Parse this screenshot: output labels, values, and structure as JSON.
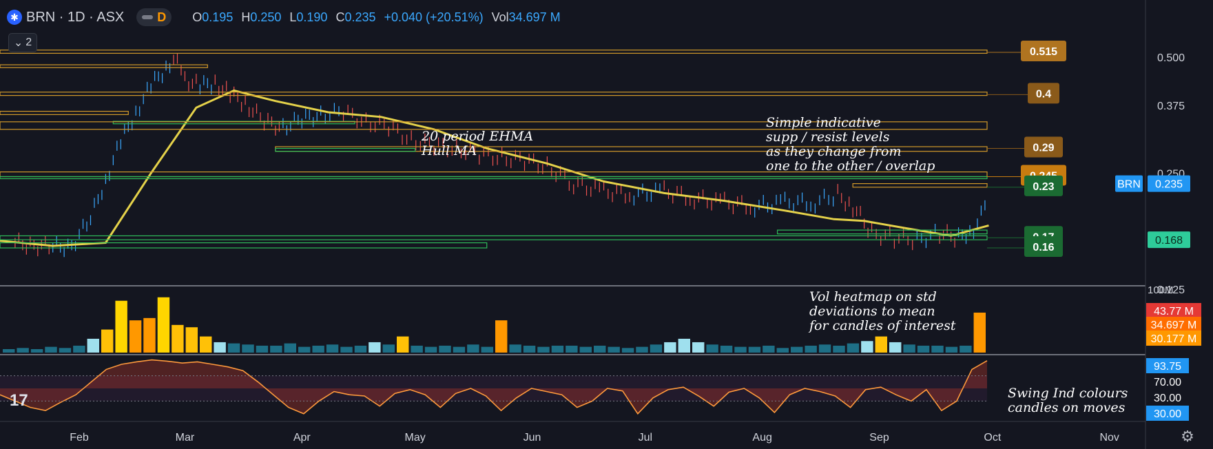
{
  "header": {
    "symbol": "BRN · 1D · ASX",
    "interval_badge": "D",
    "o_label": "O",
    "o_value": "0.195",
    "h_label": "H",
    "h_value": "0.250",
    "l_label": "L",
    "l_value": "0.190",
    "c_label": "C",
    "c_value": "0.235",
    "change": "+0.040 (+20.51%)",
    "vol_label": "Vol",
    "vol_value": "34.697 M"
  },
  "collapse_count": "2",
  "annotations": {
    "ma_lines": [
      "20 period EHMA",
      "Hull MA"
    ],
    "levels_lines": [
      "Simple indicative",
      "supp / resist levels",
      "as they change from",
      "one to the other / overlap"
    ],
    "vol_lines": [
      "Vol heatmap on std",
      "deviations to mean",
      "for candles of interest"
    ],
    "swing_lines": [
      "Swing Ind colours",
      "candles on moves"
    ]
  },
  "chart_data": [
    {
      "type": "line",
      "panel": "price",
      "ticker": "BRN",
      "price_scale": {
        "ticks": [
          "0.500",
          "0.375",
          "0.250",
          "0.125"
        ],
        "range": [
          0.125,
          0.55
        ],
        "log": true
      },
      "time_axis": {
        "months": [
          "Feb",
          "Mar",
          "Apr",
          "May",
          "Jun",
          "Jul",
          "Aug",
          "Sep",
          "Oct",
          "Nov"
        ],
        "range": [
          "2022-01-11",
          "2022-11-10"
        ]
      },
      "series": [
        {
          "name": "",
          "style": "bars-colored",
          "x": [
            "2022-01-15",
            "2022-01-20",
            "2022-01-25",
            "2022-01-30",
            "2022-02-04",
            "2022-02-08",
            "2022-02-12",
            "2022-02-16",
            "2022-02-20",
            "2022-02-24",
            "2022-02-26",
            "2022-03-01",
            "2022-03-05",
            "2022-03-09",
            "2022-03-13",
            "2022-03-17",
            "2022-03-22",
            "2022-03-27",
            "2022-04-01",
            "2022-04-06",
            "2022-04-12",
            "2022-04-18",
            "2022-04-24",
            "2022-04-30",
            "2022-05-06",
            "2022-05-12",
            "2022-05-18",
            "2022-05-24",
            "2022-05-30",
            "2022-06-05",
            "2022-06-12",
            "2022-06-20",
            "2022-06-28",
            "2022-07-06",
            "2022-07-14",
            "2022-07-22",
            "2022-07-30",
            "2022-08-07",
            "2022-08-15",
            "2022-08-21",
            "2022-08-25",
            "2022-08-30",
            "2022-09-05",
            "2022-09-11",
            "2022-09-17",
            "2022-09-22",
            "2022-09-26",
            "2022-09-29",
            "2022-09-30"
          ],
          "values": [
            0.165,
            0.163,
            0.161,
            0.162,
            0.19,
            0.24,
            0.3,
            0.36,
            0.42,
            0.47,
            0.5,
            0.44,
            0.42,
            0.43,
            0.4,
            0.38,
            0.34,
            0.33,
            0.345,
            0.355,
            0.36,
            0.34,
            0.33,
            0.305,
            0.295,
            0.29,
            0.28,
            0.275,
            0.27,
            0.26,
            0.235,
            0.225,
            0.22,
            0.225,
            0.215,
            0.21,
            0.205,
            0.21,
            0.21,
            0.22,
            0.205,
            0.175,
            0.17,
            0.168,
            0.175,
            0.17,
            0.18,
            0.2,
            0.235
          ]
        },
        {
          "name": "",
          "style": "line",
          "color": "#e5d24a",
          "x": [
            "2022-01-11",
            "2022-01-25",
            "2022-02-08",
            "2022-02-20",
            "2022-03-04",
            "2022-03-14",
            "2022-03-25",
            "2022-04-08",
            "2022-04-22",
            "2022-05-06",
            "2022-05-20",
            "2022-06-05",
            "2022-06-20",
            "2022-07-06",
            "2022-07-22",
            "2022-08-07",
            "2022-08-20",
            "2022-08-28",
            "2022-09-08",
            "2022-09-20",
            "2022-09-30"
          ],
          "values": [
            0.167,
            0.162,
            0.165,
            0.25,
            0.37,
            0.41,
            0.385,
            0.36,
            0.35,
            0.325,
            0.29,
            0.265,
            0.238,
            0.222,
            0.212,
            0.2,
            0.19,
            0.188,
            0.18,
            0.172,
            0.183
          ]
        }
      ],
      "levels": [
        {
          "low": 0.512,
          "high": 0.522,
          "type": "resistance",
          "start": "2022-01-11"
        },
        {
          "low": 0.47,
          "high": 0.478,
          "type": "resistance",
          "start": "2022-01-11",
          "end": "2022-03-07"
        },
        {
          "low": 0.398,
          "high": 0.406,
          "type": "resistance",
          "start": "2022-01-11"
        },
        {
          "low": 0.355,
          "high": 0.362,
          "type": "resistance",
          "start": "2022-01-11",
          "end": "2022-02-14"
        },
        {
          "low": 0.336,
          "high": 0.341,
          "type": "support",
          "start": "2022-02-10",
          "end": "2022-04-15"
        },
        {
          "low": 0.325,
          "high": 0.34,
          "type": "resistance",
          "start": "2022-01-11"
        },
        {
          "low": 0.285,
          "high": 0.293,
          "type": "resistance",
          "start": "2022-03-25"
        },
        {
          "low": 0.285,
          "high": 0.29,
          "type": "support",
          "start": "2022-03-25",
          "end": "2022-05-01"
        },
        {
          "low": 0.245,
          "high": 0.252,
          "type": "resistance",
          "start": "2022-01-11"
        },
        {
          "low": 0.242,
          "high": 0.245,
          "type": "support",
          "start": "2022-01-11"
        },
        {
          "low": 0.23,
          "high": 0.235,
          "type": "resistance",
          "start": "2022-08-25"
        },
        {
          "low": 0.174,
          "high": 0.178,
          "type": "support",
          "start": "2022-08-05"
        },
        {
          "low": 0.168,
          "high": 0.172,
          "type": "support",
          "start": "2022-01-11"
        },
        {
          "low": 0.16,
          "high": 0.165,
          "type": "support",
          "start": "2022-01-11",
          "end": "2022-05-20"
        }
      ],
      "level_labels": [
        {
          "text": "0.515",
          "value": 0.515,
          "color": "#b07420"
        },
        {
          "text": "0.4",
          "value": 0.4,
          "color": "#8a5a1a"
        },
        {
          "text": "0.29",
          "value": 0.29,
          "color": "#8a5a1a"
        },
        {
          "text": "0.245",
          "value": 0.245,
          "color": "#c87c10"
        },
        {
          "text": "0.23",
          "value": 0.23,
          "color": "#1b6b32"
        },
        {
          "text": "0.17",
          "value": 0.17,
          "color": "#1b6b32"
        },
        {
          "text": "0.16",
          "value": 0.16,
          "color": "#1b6b32"
        }
      ],
      "scale_labels": [
        {
          "text": "BRN",
          "value": 0.235,
          "color": "#2196f3"
        },
        {
          "text": "0.235",
          "value": 0.235,
          "color": "#2196f3"
        },
        {
          "text": "0.168",
          "value": 0.168,
          "color": "#2ecc9a"
        }
      ],
      "grid": false
    },
    {
      "type": "bar",
      "panel": "volume",
      "scale_top_label": "100M",
      "scale_labels": [
        {
          "text": "43.77 M",
          "color": "#e53935"
        },
        {
          "text": "34.697 M",
          "color": "#ff6d00"
        },
        {
          "text": "30.177 M",
          "color": "#ff9800"
        }
      ],
      "values_m": [
        3,
        4,
        3,
        5,
        4,
        6,
        12,
        20,
        45,
        28,
        30,
        48,
        24,
        22,
        14,
        9,
        8,
        7,
        6,
        6,
        8,
        5,
        6,
        7,
        5,
        6,
        9,
        7,
        14,
        6,
        5,
        6,
        5,
        7,
        5,
        28,
        7,
        6,
        5,
        6,
        6,
        5,
        6,
        5,
        4,
        5,
        7,
        9,
        12,
        9,
        7,
        6,
        5,
        5,
        6,
        4,
        5,
        6,
        7,
        6,
        8,
        10,
        14,
        9,
        7,
        6,
        6,
        5,
        6,
        34.697
      ],
      "grid": false
    },
    {
      "type": "area",
      "panel": "swing",
      "levels": [
        70,
        30
      ],
      "scale_labels": [
        {
          "text": "93.75",
          "color": "#2196f3"
        },
        {
          "text": "70.00",
          "color": "#ffffff"
        },
        {
          "text": "30.00",
          "color": "#ffffff"
        },
        {
          "text": "30.00",
          "color": "#2196f3"
        }
      ],
      "values": [
        40,
        30,
        20,
        15,
        28,
        40,
        60,
        80,
        88,
        92,
        95,
        93,
        90,
        92,
        88,
        84,
        78,
        60,
        40,
        20,
        10,
        30,
        45,
        40,
        38,
        22,
        42,
        48,
        40,
        20,
        42,
        50,
        38,
        15,
        35,
        50,
        45,
        40,
        20,
        30,
        50,
        46,
        10,
        35,
        48,
        52,
        38,
        22,
        44,
        50,
        35,
        12,
        40,
        50,
        45,
        38,
        20,
        48,
        52,
        40,
        30,
        48,
        15,
        30,
        80,
        93.75
      ],
      "grid": false
    }
  ]
}
